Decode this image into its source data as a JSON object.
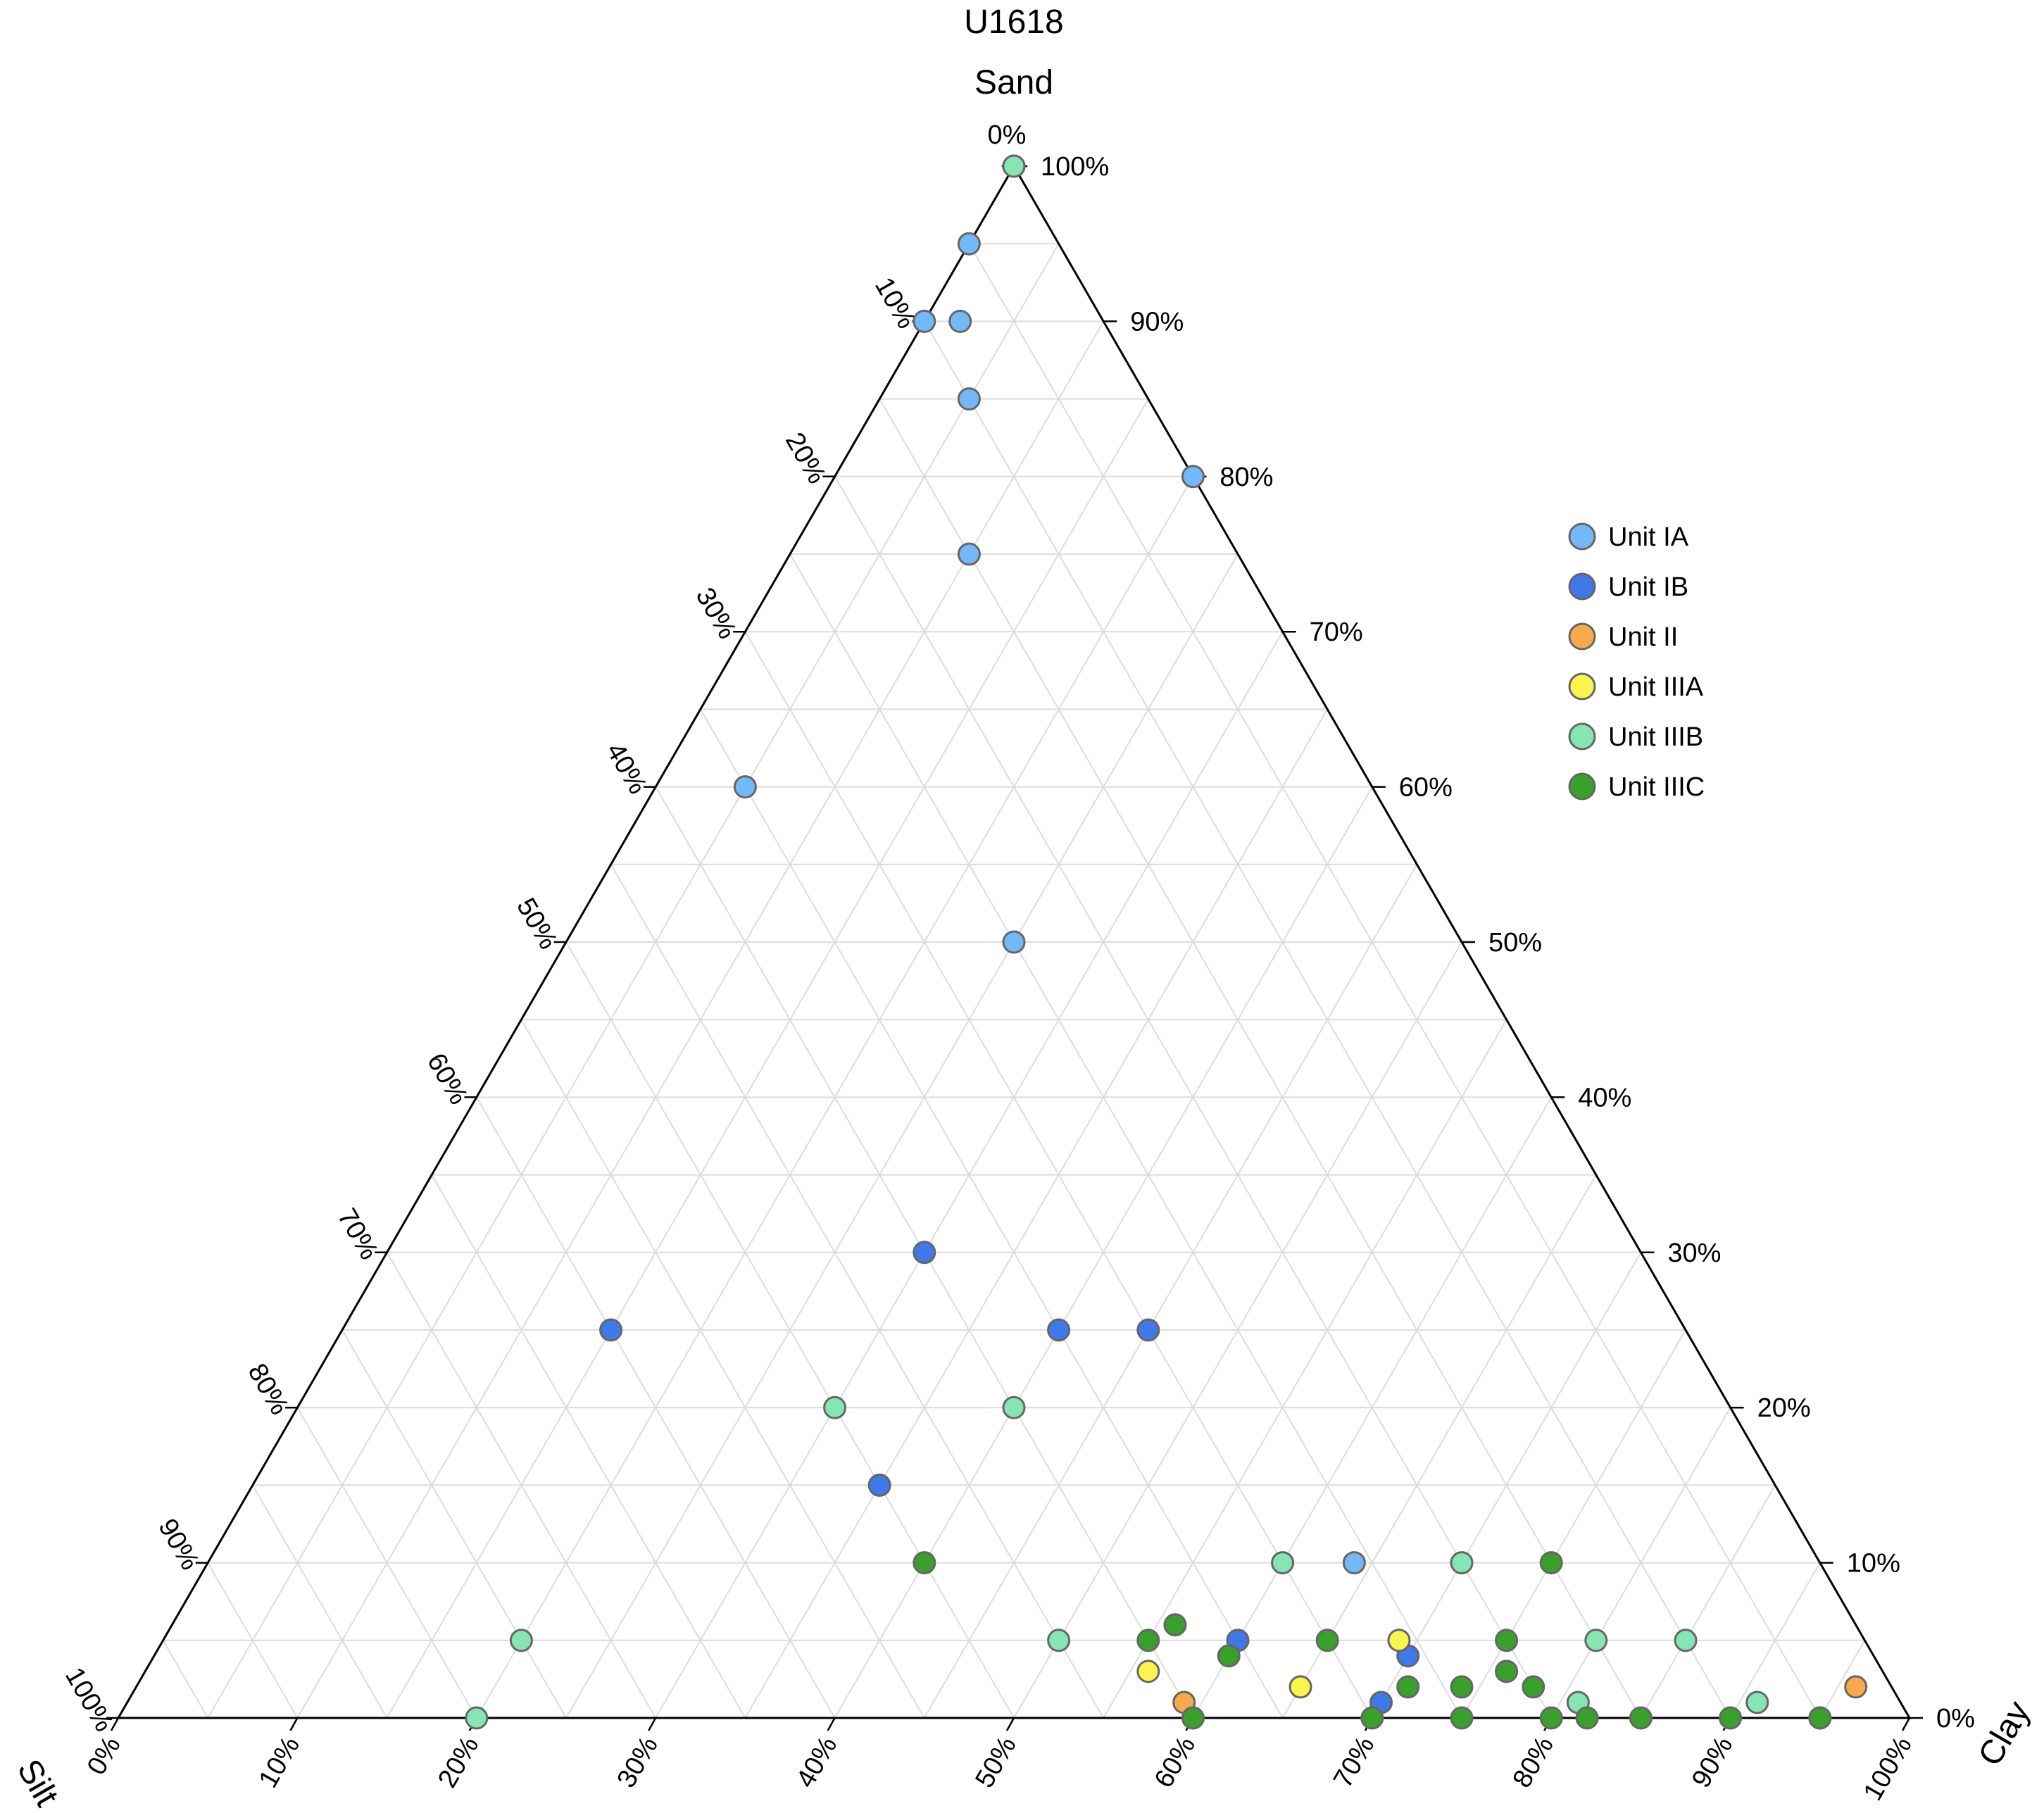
{
  "chart_data": {
    "type": "scatter",
    "subtype": "ternary",
    "title": "U1618",
    "axes": {
      "top": "Sand",
      "left": "Silt",
      "right": "Clay"
    },
    "ticks": [
      "0%",
      "10%",
      "20%",
      "30%",
      "40%",
      "50%",
      "60%",
      "70%",
      "80%",
      "90%",
      "100%"
    ],
    "grid": true,
    "legend_position": "right",
    "series": [
      {
        "name": "Unit IA",
        "color": "#74b9f7",
        "points": [
          {
            "sand": 100,
            "silt": 0,
            "clay": 0
          },
          {
            "sand": 95,
            "silt": 5,
            "clay": 0
          },
          {
            "sand": 90,
            "silt": 10,
            "clay": 0
          },
          {
            "sand": 90,
            "silt": 8,
            "clay": 2
          },
          {
            "sand": 85,
            "silt": 10,
            "clay": 5
          },
          {
            "sand": 80,
            "silt": 0,
            "clay": 20
          },
          {
            "sand": 75,
            "silt": 15,
            "clay": 10
          },
          {
            "sand": 60,
            "silt": 35,
            "clay": 5
          },
          {
            "sand": 50,
            "silt": 25,
            "clay": 25
          },
          {
            "sand": 10,
            "silt": 26,
            "clay": 64
          },
          {
            "sand": 3,
            "silt": 21,
            "clay": 76
          }
        ]
      },
      {
        "name": "Unit IB",
        "color": "#3f79e8",
        "points": [
          {
            "sand": 30,
            "silt": 40,
            "clay": 30
          },
          {
            "sand": 25,
            "silt": 60,
            "clay": 15
          },
          {
            "sand": 25,
            "silt": 35,
            "clay": 40
          },
          {
            "sand": 25,
            "silt": 30,
            "clay": 45
          },
          {
            "sand": 15,
            "silt": 50,
            "clay": 35
          },
          {
            "sand": 5,
            "silt": 35,
            "clay": 60
          },
          {
            "sand": 4,
            "silt": 26,
            "clay": 70
          },
          {
            "sand": 1,
            "silt": 29,
            "clay": 70
          }
        ]
      },
      {
        "name": "Unit II",
        "color": "#f7a94b",
        "points": [
          {
            "sand": 1,
            "silt": 40,
            "clay": 59
          },
          {
            "sand": 2,
            "silt": 2,
            "clay": 96
          },
          {
            "sand": 0,
            "silt": 5,
            "clay": 95
          }
        ]
      },
      {
        "name": "Unit IIIA",
        "color": "#f9f54e",
        "points": [
          {
            "sand": 5,
            "silt": 26,
            "clay": 69
          },
          {
            "sand": 3,
            "silt": 41,
            "clay": 56
          },
          {
            "sand": 2,
            "silt": 33,
            "clay": 65
          }
        ]
      },
      {
        "name": "Unit IIIB",
        "color": "#86e5b3",
        "points": [
          {
            "sand": 100,
            "silt": 0,
            "clay": 0
          },
          {
            "sand": 20,
            "silt": 50,
            "clay": 30
          },
          {
            "sand": 20,
            "silt": 40,
            "clay": 40
          },
          {
            "sand": 10,
            "silt": 30,
            "clay": 60
          },
          {
            "sand": 10,
            "silt": 20,
            "clay": 70
          },
          {
            "sand": 5,
            "silt": 75,
            "clay": 20
          },
          {
            "sand": 5,
            "silt": 45,
            "clay": 50
          },
          {
            "sand": 5,
            "silt": 15,
            "clay": 80
          },
          {
            "sand": 5,
            "silt": 10,
            "clay": 85
          },
          {
            "sand": 0,
            "silt": 80,
            "clay": 20
          },
          {
            "sand": 1,
            "silt": 18,
            "clay": 81
          },
          {
            "sand": 1,
            "silt": 8,
            "clay": 91
          }
        ]
      },
      {
        "name": "Unit IIIC",
        "color": "#3aa02c",
        "points": [
          {
            "sand": 10,
            "silt": 50,
            "clay": 40
          },
          {
            "sand": 10,
            "silt": 15,
            "clay": 75
          },
          {
            "sand": 6,
            "silt": 38,
            "clay": 56
          },
          {
            "sand": 5,
            "silt": 40,
            "clay": 55
          },
          {
            "sand": 4,
            "silt": 36,
            "clay": 60
          },
          {
            "sand": 5,
            "silt": 30,
            "clay": 65
          },
          {
            "sand": 5,
            "silt": 20,
            "clay": 75
          },
          {
            "sand": 3,
            "silt": 21,
            "clay": 76
          },
          {
            "sand": 2,
            "silt": 20,
            "clay": 78
          },
          {
            "sand": 2,
            "silt": 27,
            "clay": 71
          },
          {
            "sand": 2,
            "silt": 24,
            "clay": 74
          },
          {
            "sand": 0,
            "silt": 40,
            "clay": 60
          },
          {
            "sand": 0,
            "silt": 30,
            "clay": 70
          },
          {
            "sand": 0,
            "silt": 25,
            "clay": 75
          },
          {
            "sand": 0,
            "silt": 20,
            "clay": 80
          },
          {
            "sand": 0,
            "silt": 18,
            "clay": 82
          },
          {
            "sand": 0,
            "silt": 15,
            "clay": 85
          },
          {
            "sand": 0,
            "silt": 10,
            "clay": 90
          },
          {
            "sand": 0,
            "silt": 5,
            "clay": 95
          }
        ]
      }
    ]
  }
}
